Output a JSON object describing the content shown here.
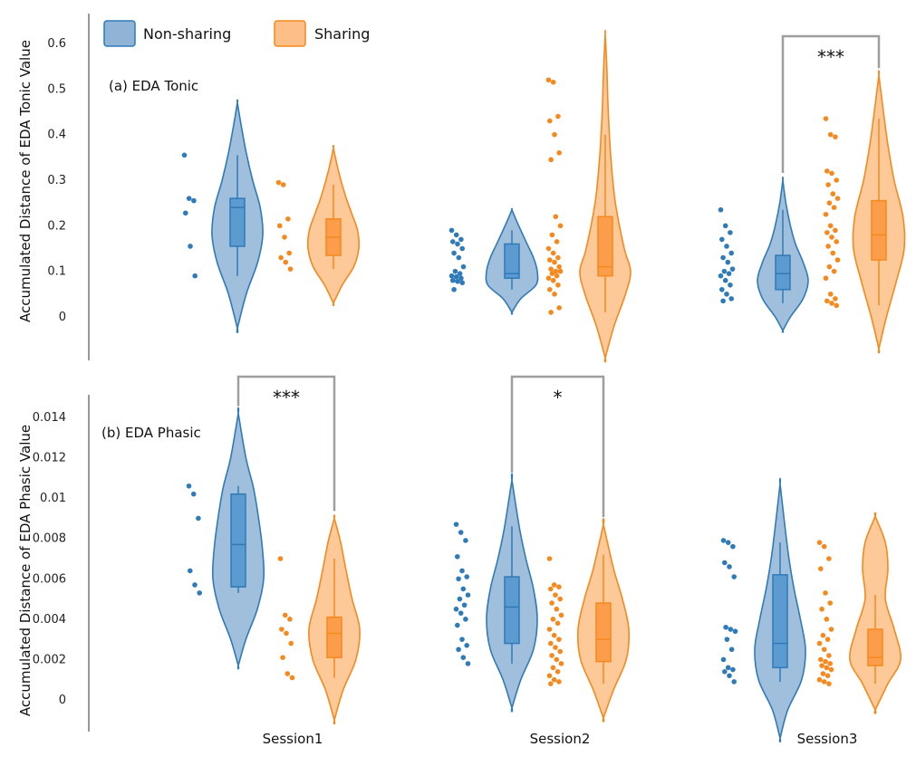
{
  "colors": {
    "non_sharing_fill": "#8fb4d6",
    "non_sharing_line": "#2f7ab8",
    "non_sharing_box": "#5b9bcf",
    "sharing_fill": "#fdbf87",
    "sharing_line": "#f5891e",
    "sharing_box": "#fb9d4b",
    "bracket": "#9e9e9e",
    "axis": "#555555"
  },
  "legend": {
    "items": [
      "Non-sharing",
      "Sharing"
    ]
  },
  "x_categories": [
    "Session1",
    "Session2",
    "Session3"
  ],
  "chart_data": [
    {
      "type": "violin",
      "panel_label": "(a) EDA Tonic",
      "ylabel": "Accumulated Distance of EDA Tonic Value",
      "ylim": [
        -0.1,
        0.66
      ],
      "yticks": [
        0,
        0.1,
        0.2,
        0.3,
        0.4,
        0.5,
        0.6
      ],
      "ytick_labels": [
        "0",
        "0.1",
        "0.2",
        "0.3",
        "0.4",
        "0.5",
        "0.6"
      ],
      "categories": [
        "Session1",
        "Session2",
        "Session3"
      ],
      "series": [
        {
          "name": "Non-sharing",
          "groups": [
            {
              "category": "Session1",
              "min": -0.025,
              "max": 0.47,
              "q1": 0.155,
              "median": 0.24,
              "q3": 0.26,
              "whisker_lo": 0.09,
              "whisker_hi": 0.355,
              "kde_y": [
                -0.025,
                0.05,
                0.12,
                0.18,
                0.24,
                0.3,
                0.36,
                0.42,
                0.47
              ],
              "kde_w": [
                0,
                0.35,
                0.8,
                1.0,
                0.9,
                0.6,
                0.35,
                0.15,
                0
              ],
              "points": [
                0.355,
                0.26,
                0.255,
                0.228,
                0.155,
                0.09
              ]
            },
            {
              "category": "Session2",
              "min": 0.01,
              "max": 0.235,
              "q1": 0.085,
              "median": 0.095,
              "q3": 0.16,
              "whisker_lo": 0.06,
              "whisker_hi": 0.19,
              "kde_y": [
                0.01,
                0.04,
                0.07,
                0.1,
                0.13,
                0.16,
                0.19,
                0.215,
                0.235
              ],
              "kde_w": [
                0,
                0.35,
                0.95,
                1.0,
                0.85,
                0.6,
                0.35,
                0.15,
                0
              ],
              "points": [
                0.19,
                0.18,
                0.17,
                0.165,
                0.16,
                0.15,
                0.14,
                0.13,
                0.11,
                0.1,
                0.095,
                0.09,
                0.088,
                0.085,
                0.08,
                0.078,
                0.075,
                0.06
              ]
            },
            {
              "category": "Session3",
              "min": -0.03,
              "max": 0.3,
              "q1": 0.06,
              "median": 0.095,
              "q3": 0.135,
              "whisker_lo": 0.03,
              "whisker_hi": 0.235,
              "kde_y": [
                -0.03,
                0.0,
                0.04,
                0.08,
                0.12,
                0.16,
                0.2,
                0.25,
                0.3
              ],
              "kde_w": [
                0,
                0.3,
                0.8,
                1.0,
                0.8,
                0.5,
                0.3,
                0.12,
                0
              ],
              "points": [
                0.235,
                0.2,
                0.185,
                0.17,
                0.155,
                0.14,
                0.13,
                0.12,
                0.105,
                0.1,
                0.095,
                0.09,
                0.08,
                0.07,
                0.06,
                0.05,
                0.04,
                0.035
              ]
            }
          ]
        },
        {
          "name": "Sharing",
          "groups": [
            {
              "category": "Session1",
              "min": 0.03,
              "max": 0.37,
              "q1": 0.135,
              "median": 0.175,
              "q3": 0.215,
              "whisker_lo": 0.105,
              "whisker_hi": 0.29,
              "kde_y": [
                0.03,
                0.07,
                0.11,
                0.15,
                0.19,
                0.23,
                0.27,
                0.32,
                0.37
              ],
              "kde_w": [
                0,
                0.35,
                0.8,
                1.0,
                0.95,
                0.7,
                0.45,
                0.2,
                0
              ],
              "points": [
                0.295,
                0.29,
                0.215,
                0.2,
                0.175,
                0.14,
                0.13,
                0.12,
                0.105
              ]
            },
            {
              "category": "Session2",
              "min": -0.09,
              "max": 0.62,
              "q1": 0.09,
              "median": 0.11,
              "q3": 0.22,
              "whisker_lo": 0.01,
              "whisker_hi": 0.4,
              "kde_y": [
                -0.09,
                -0.02,
                0.05,
                0.1,
                0.15,
                0.25,
                0.35,
                0.45,
                0.55,
                0.62
              ],
              "kde_w": [
                0,
                0.35,
                0.8,
                1.0,
                0.75,
                0.4,
                0.22,
                0.12,
                0.06,
                0
              ],
              "points": [
                0.52,
                0.515,
                0.44,
                0.43,
                0.4,
                0.36,
                0.345,
                0.22,
                0.2,
                0.18,
                0.165,
                0.15,
                0.14,
                0.13,
                0.125,
                0.12,
                0.11,
                0.105,
                0.1,
                0.1,
                0.095,
                0.09,
                0.085,
                0.08,
                0.07,
                0.06,
                0.05,
                0.02,
                0.01
              ]
            },
            {
              "category": "Session3",
              "min": -0.07,
              "max": 0.53,
              "q1": 0.125,
              "median": 0.18,
              "q3": 0.255,
              "whisker_lo": 0.025,
              "whisker_hi": 0.435,
              "kde_y": [
                -0.07,
                0.0,
                0.08,
                0.15,
                0.22,
                0.3,
                0.38,
                0.45,
                0.53
              ],
              "kde_w": [
                0,
                0.3,
                0.7,
                1.0,
                0.95,
                0.6,
                0.35,
                0.18,
                0
              ],
              "points": [
                0.435,
                0.4,
                0.395,
                0.32,
                0.315,
                0.3,
                0.29,
                0.27,
                0.26,
                0.25,
                0.24,
                0.225,
                0.2,
                0.19,
                0.185,
                0.175,
                0.165,
                0.155,
                0.14,
                0.125,
                0.11,
                0.1,
                0.085,
                0.05,
                0.04,
                0.035,
                0.03,
                0.025
              ]
            }
          ]
        }
      ],
      "significance": [
        {
          "category": "Session3",
          "label": "***",
          "y_bar": 0.61
        }
      ]
    },
    {
      "type": "violin",
      "panel_label": "(b) EDA Phasic",
      "ylabel": "Accumulated Distance of EDA Phasic Value",
      "ylim": [
        -0.0015,
        0.0148
      ],
      "yticks": [
        0,
        0.002,
        0.004,
        0.006,
        0.008,
        0.01,
        0.012,
        0.014
      ],
      "ytick_labels": [
        "0",
        "0.002",
        "0.004",
        "0.006",
        "0.008",
        "0.01",
        "0.012",
        "0.014"
      ],
      "categories": [
        "Session1",
        "Session2",
        "Session3"
      ],
      "series": [
        {
          "name": "Non-sharing",
          "groups": [
            {
              "category": "Session1",
              "min": 0.0017,
              "max": 0.0142,
              "q1": 0.0056,
              "median": 0.0077,
              "q3": 0.0102,
              "whisker_lo": 0.0053,
              "whisker_hi": 0.0106,
              "kde_y": [
                0.0017,
                0.003,
                0.0045,
                0.006,
                0.0075,
                0.009,
                0.0105,
                0.012,
                0.0142
              ],
              "kde_w": [
                0,
                0.3,
                0.75,
                1.0,
                0.95,
                0.8,
                0.6,
                0.3,
                0
              ],
              "points": [
                0.0106,
                0.0102,
                0.009,
                0.0064,
                0.0057,
                0.0053
              ]
            },
            {
              "category": "Session2",
              "min": -0.0004,
              "max": 0.0109,
              "q1": 0.0028,
              "median": 0.0046,
              "q3": 0.0061,
              "whisker_lo": 0.0018,
              "whisker_hi": 0.0086,
              "kde_y": [
                -0.0004,
                0.001,
                0.0025,
                0.004,
                0.0055,
                0.007,
                0.0085,
                0.0109
              ],
              "kde_w": [
                0,
                0.35,
                0.85,
                1.0,
                0.85,
                0.55,
                0.3,
                0
              ],
              "points": [
                0.0087,
                0.0083,
                0.0079,
                0.0071,
                0.0064,
                0.0061,
                0.006,
                0.0055,
                0.0052,
                0.005,
                0.0047,
                0.0045,
                0.0043,
                0.004,
                0.0037,
                0.003,
                0.0027,
                0.0025,
                0.0021,
                0.0018
              ]
            },
            {
              "category": "Session3",
              "min": -0.0019,
              "max": 0.0107,
              "q1": 0.0016,
              "median": 0.0028,
              "q3": 0.0062,
              "whisker_lo": 0.0009,
              "whisker_hi": 0.0078,
              "kde_y": [
                -0.0019,
                -0.0005,
                0.001,
                0.0025,
                0.004,
                0.0055,
                0.007,
                0.0085,
                0.0107
              ],
              "kde_w": [
                0,
                0.3,
                0.85,
                1.0,
                0.8,
                0.55,
                0.35,
                0.2,
                0
              ],
              "points": [
                0.0079,
                0.0078,
                0.0076,
                0.0068,
                0.0066,
                0.0061,
                0.0036,
                0.0035,
                0.0034,
                0.003,
                0.0025,
                0.002,
                0.0016,
                0.0015,
                0.0014,
                0.0012,
                0.0009
              ]
            }
          ]
        },
        {
          "name": "Sharing",
          "groups": [
            {
              "category": "Session1",
              "min": -0.001,
              "max": 0.009,
              "q1": 0.0021,
              "median": 0.0033,
              "q3": 0.0041,
              "whisker_lo": 0.0011,
              "whisker_hi": 0.007,
              "kde_y": [
                -0.001,
                0.0005,
                0.002,
                0.0035,
                0.005,
                0.0065,
                0.0078,
                0.009
              ],
              "kde_w": [
                0,
                0.35,
                0.85,
                1.0,
                0.7,
                0.45,
                0.25,
                0
              ],
              "points": [
                0.007,
                0.0042,
                0.004,
                0.0035,
                0.0033,
                0.0028,
                0.0021,
                0.0013,
                0.0011
              ]
            },
            {
              "category": "Session2",
              "min": -0.0009,
              "max": 0.0087,
              "q1": 0.0019,
              "median": 0.003,
              "q3": 0.0048,
              "whisker_lo": 0.0008,
              "whisker_hi": 0.0072,
              "kde_y": [
                -0.0009,
                0.0005,
                0.002,
                0.0035,
                0.005,
                0.0065,
                0.0087
              ],
              "kde_w": [
                0,
                0.4,
                0.9,
                1.0,
                0.75,
                0.4,
                0
              ],
              "points": [
                0.007,
                0.0057,
                0.0056,
                0.0055,
                0.0052,
                0.005,
                0.0048,
                0.0045,
                0.0042,
                0.004,
                0.0038,
                0.0035,
                0.0032,
                0.003,
                0.0028,
                0.0026,
                0.0024,
                0.0022,
                0.002,
                0.0018,
                0.0016,
                0.0014,
                0.0012,
                0.001,
                0.0009,
                0.0008
              ]
            },
            {
              "category": "Session3",
              "min": -0.0005,
              "max": 0.0091,
              "q1": 0.0017,
              "median": 0.0021,
              "q3": 0.0035,
              "whisker_lo": 0.0008,
              "whisker_hi": 0.0052,
              "kde_y": [
                -0.0005,
                0.0008,
                0.002,
                0.0035,
                0.005,
                0.0065,
                0.0078,
                0.0091
              ],
              "kde_w": [
                0,
                0.5,
                1.0,
                0.75,
                0.4,
                0.5,
                0.4,
                0
              ],
              "points": [
                0.0078,
                0.0076,
                0.007,
                0.0065,
                0.0053,
                0.0048,
                0.0045,
                0.004,
                0.0035,
                0.0032,
                0.003,
                0.0028,
                0.0025,
                0.0022,
                0.002,
                0.0019,
                0.0018,
                0.0017,
                0.0016,
                0.0015,
                0.0013,
                0.0012,
                0.001,
                0.0009,
                0.0008
              ]
            }
          ]
        }
      ],
      "significance": [
        {
          "category": "Session1",
          "label": "***",
          "y_bar": 0.016
        },
        {
          "category": "Session2",
          "label": "*",
          "y_bar": 0.016
        }
      ]
    }
  ]
}
